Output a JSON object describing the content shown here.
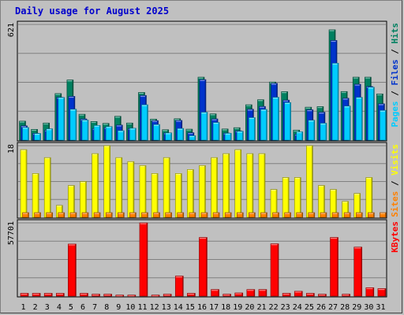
{
  "chart_data": {
    "title": "Daily usage for August 2025",
    "type": "bar",
    "x": [
      "1",
      "2",
      "3",
      "4",
      "5",
      "6",
      "7",
      "8",
      "9",
      "10",
      "11",
      "12",
      "13",
      "14",
      "15",
      "16",
      "17",
      "18",
      "19",
      "20",
      "21",
      "22",
      "23",
      "24",
      "25",
      "26",
      "27",
      "28",
      "29",
      "30",
      "31"
    ],
    "weekend_days": [
      "2",
      "3",
      "9",
      "10",
      "16",
      "17",
      "23",
      "24",
      "30",
      "31"
    ],
    "panels": [
      {
        "id": "hits",
        "ymax": 621,
        "ymax_label": "621",
        "side_label": [
          {
            "text": "Pages",
            "color": "#00ccff"
          },
          {
            "text": " / ",
            "color": "#000000"
          },
          {
            "text": "Files",
            "color": "#0033cc"
          },
          {
            "text": " / ",
            "color": "#000000"
          },
          {
            "text": "Hits",
            "color": "#008060"
          }
        ],
        "series": [
          {
            "name": "Hits",
            "color": "#008060",
            "values": [
              102,
              58,
              92,
              250,
              323,
              139,
              100,
              90,
              128,
              92,
              256,
              113,
              56,
              115,
              59,
              338,
              141,
              60,
              67,
              190,
              217,
              312,
              260,
              54,
              177,
              180,
              592,
              261,
              338,
              338,
              248
            ]
          },
          {
            "name": "Files",
            "color": "#0033cc",
            "values": [
              77,
              37,
              54,
              230,
              235,
              114,
              63,
              68,
              81,
              63,
              240,
              105,
              39,
              106,
              40,
              325,
              114,
              38,
              50,
              166,
              181,
              305,
              215,
              32,
              163,
              150,
              535,
              225,
              300,
              288,
              195
            ]
          },
          {
            "name": "Pages",
            "color": "#00ccff",
            "values": [
              68,
              36,
              61,
              229,
              166,
              108,
              79,
              73,
              51,
              64,
              190,
              84,
              39,
              63,
              24,
              150,
              95,
              37,
              48,
              121,
              165,
              230,
              202,
              45,
              107,
              91,
              413,
              183,
              230,
              284,
              160
            ]
          }
        ]
      },
      {
        "id": "visits",
        "ymax": 18,
        "ymax_label": "18",
        "side_label": [
          {
            "text": "Sites",
            "color": "#ff8000"
          },
          {
            "text": " / ",
            "color": "#000000"
          },
          {
            "text": "Visits",
            "color": "#ffff00"
          }
        ],
        "series": [
          {
            "name": "Visits",
            "color": "#ffff00",
            "values": [
              17,
              11,
              15,
              3,
              8,
              9,
              16,
              18,
              15,
              14,
              13,
              11,
              15,
              11,
              12,
              13,
              15,
              16,
              17,
              16,
              16,
              7,
              10,
              10,
              18,
              8,
              7,
              4,
              6,
              10,
              0
            ]
          },
          {
            "name": "Sites",
            "color": "#ff8000",
            "values": [
              1,
              1,
              1,
              1,
              1,
              1,
              1,
              1,
              1,
              1,
              1,
              1,
              1,
              1,
              1,
              1,
              1,
              1,
              1,
              1,
              1,
              1,
              1,
              1,
              1,
              1,
              1,
              1,
              1,
              1,
              1
            ]
          }
        ]
      },
      {
        "id": "kbytes",
        "ymax": 57701,
        "ymax_label": "57701",
        "side_label": [
          {
            "text": "KBytes",
            "color": "#ff0000"
          }
        ],
        "series": [
          {
            "name": "KBytes",
            "color": "#ff0000",
            "values": [
              2200,
              2200,
              2200,
              2200,
              41000,
              2200,
              1500,
              1500,
              800,
              800,
              57701,
              800,
              1500,
              15800,
              2200,
              46200,
              5200,
              1500,
              2500,
              5200,
              5200,
              41200,
              2200,
              3800,
              2200,
              1500,
              46200,
              1500,
              38600,
              6600,
              5900
            ]
          }
        ]
      }
    ]
  }
}
